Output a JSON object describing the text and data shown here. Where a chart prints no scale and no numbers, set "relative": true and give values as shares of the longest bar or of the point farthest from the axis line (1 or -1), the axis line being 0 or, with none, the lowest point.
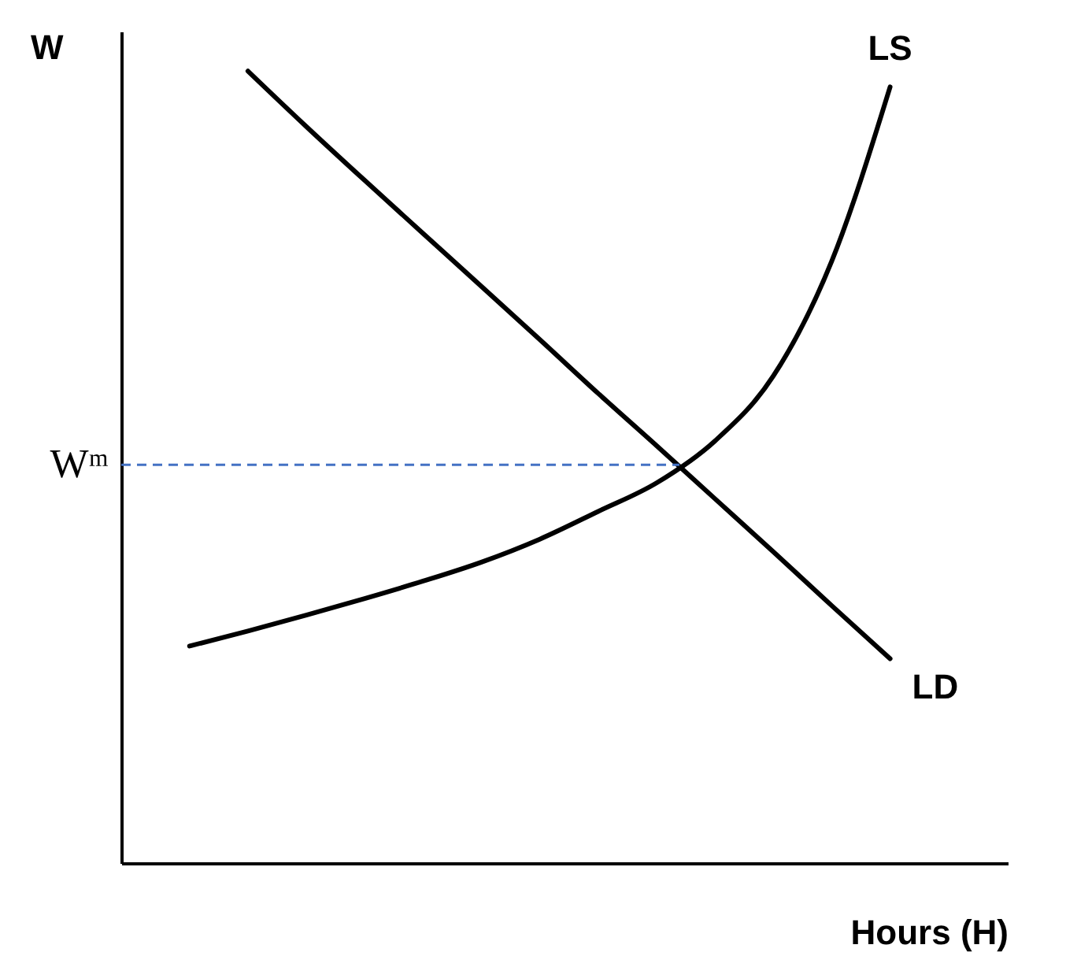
{
  "chart_data": {
    "type": "line",
    "relative": true,
    "xlabel": "Hours (H)",
    "ylabel": "W",
    "marker": "none",
    "line_style": "solid",
    "categories": [
      null,
      null,
      null,
      null,
      null,
      null,
      null,
      null,
      null,
      null,
      null,
      null,
      null
    ],
    "series": [
      {
        "name": "LD",
        "color": "#000000",
        "values": [
          null,
          1.0,
          0.93,
          0.862,
          0.795,
          0.728,
          0.661,
          0.593,
          0.527,
          0.46,
          0.393,
          0.325,
          0.258
        ]
      },
      {
        "name": "LS",
        "color": "#000000",
        "values": [
          0.274,
          0.293,
          0.313,
          0.334,
          0.356,
          0.38,
          0.409,
          0.444,
          0.48,
          0.533,
          0.615,
          0.76,
          0.98
        ]
      }
    ],
    "ref_lines": [
      {
        "axis": "y",
        "value": 0.503,
        "label": "Wᵐ",
        "color": "#4472c4",
        "line_style": "dashed"
      }
    ]
  }
}
